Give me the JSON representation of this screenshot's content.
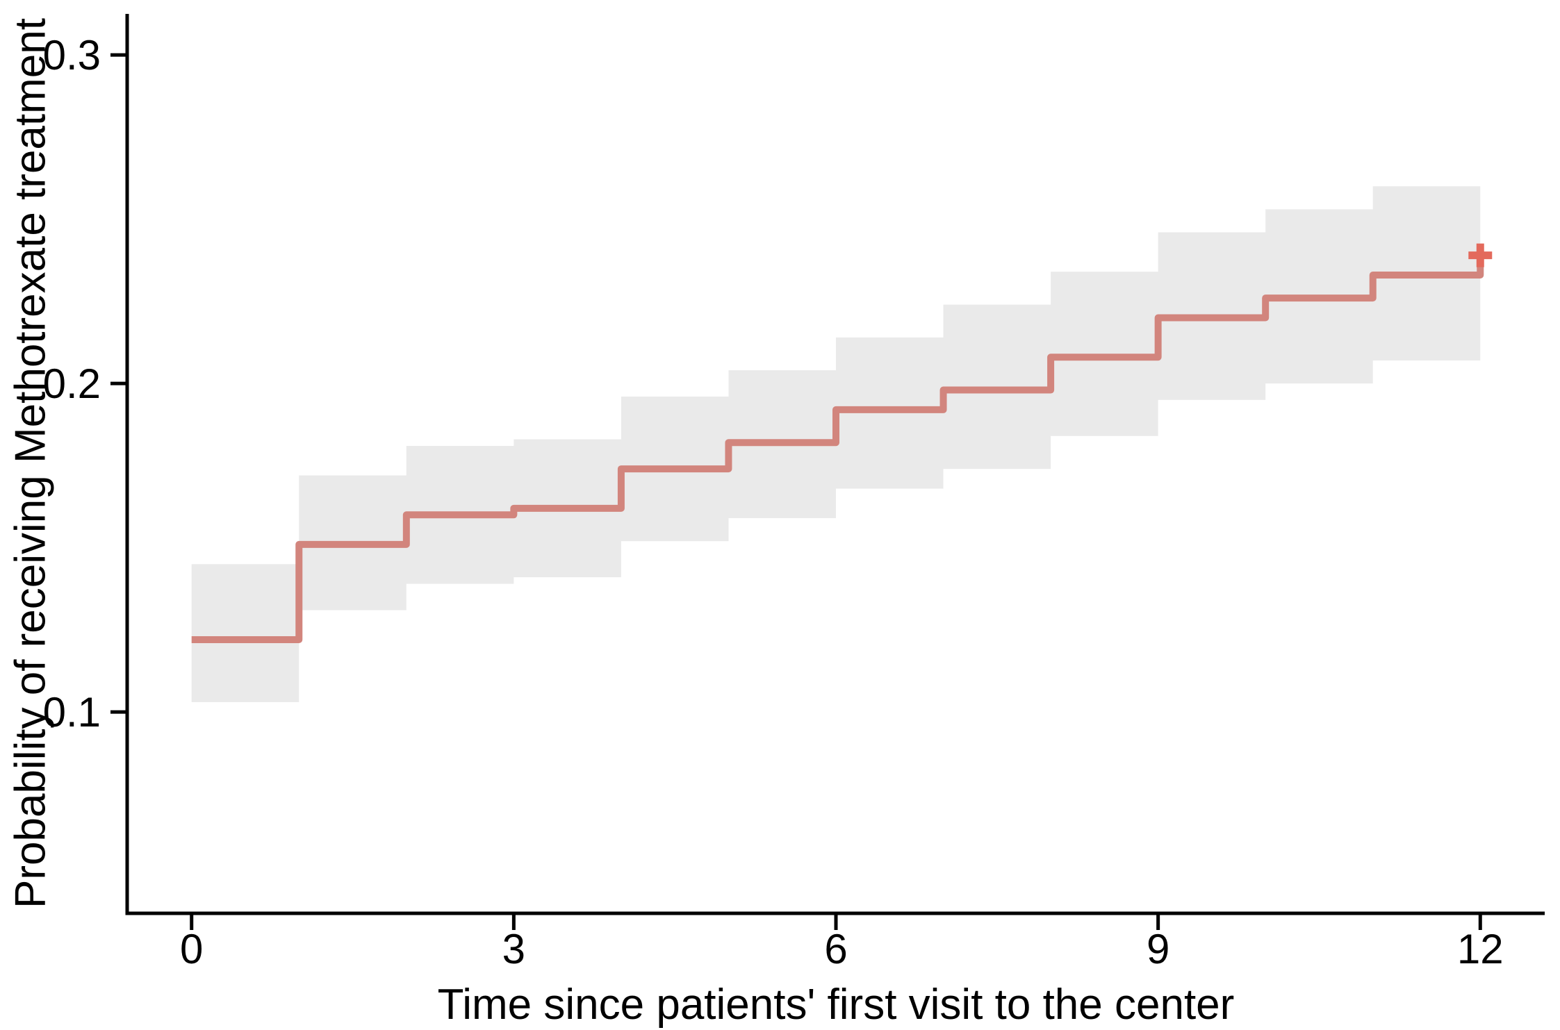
{
  "chart_data": {
    "type": "line",
    "subtype": "kaplan-meier-step-curve-with-confidence-band",
    "title": "",
    "xlabel": "Time since patients' first visit to the center",
    "ylabel": "Probability of receiving Methotrexate treatment",
    "x_ticks": [
      0,
      3,
      6,
      9,
      12
    ],
    "x_tick_labels": [
      "0",
      "3",
      "6",
      "9",
      "12"
    ],
    "y_ticks": [
      0.1,
      0.2,
      0.3
    ],
    "y_tick_labels": [
      "0.1",
      "0.2",
      "0.3"
    ],
    "xlim": [
      -0.6,
      12.6
    ],
    "ylim": [
      0.0387,
      0.3125
    ],
    "grid": false,
    "legend": "none",
    "line_color": "#D2857D",
    "censor_color": "#E36A5C",
    "band_color": "#EAEAEA",
    "axis_color": "#000000",
    "segments": [
      {
        "t_start": 0,
        "t_end": 1,
        "estimate": 0.122,
        "ci_lower": 0.103,
        "ci_upper": 0.145
      },
      {
        "t_start": 1,
        "t_end": 2,
        "estimate": 0.151,
        "ci_lower": 0.131,
        "ci_upper": 0.172
      },
      {
        "t_start": 2,
        "t_end": 3,
        "estimate": 0.16,
        "ci_lower": 0.139,
        "ci_upper": 0.181
      },
      {
        "t_start": 3,
        "t_end": 4,
        "estimate": 0.162,
        "ci_lower": 0.141,
        "ci_upper": 0.183
      },
      {
        "t_start": 4,
        "t_end": 5,
        "estimate": 0.174,
        "ci_lower": 0.152,
        "ci_upper": 0.196
      },
      {
        "t_start": 5,
        "t_end": 6,
        "estimate": 0.182,
        "ci_lower": 0.159,
        "ci_upper": 0.204
      },
      {
        "t_start": 6,
        "t_end": 7,
        "estimate": 0.192,
        "ci_lower": 0.168,
        "ci_upper": 0.214
      },
      {
        "t_start": 7,
        "t_end": 8,
        "estimate": 0.198,
        "ci_lower": 0.174,
        "ci_upper": 0.224
      },
      {
        "t_start": 8,
        "t_end": 9,
        "estimate": 0.208,
        "ci_lower": 0.184,
        "ci_upper": 0.234
      },
      {
        "t_start": 9,
        "t_end": 10,
        "estimate": 0.22,
        "ci_lower": 0.195,
        "ci_upper": 0.246
      },
      {
        "t_start": 10,
        "t_end": 11,
        "estimate": 0.226,
        "ci_lower": 0.2,
        "ci_upper": 0.253
      },
      {
        "t_start": 11,
        "t_end": 12,
        "estimate": 0.233,
        "ci_lower": 0.207,
        "ci_upper": 0.26
      }
    ],
    "censor_marks": [
      {
        "t": 12,
        "estimate": 0.239,
        "symbol": "+"
      }
    ]
  }
}
